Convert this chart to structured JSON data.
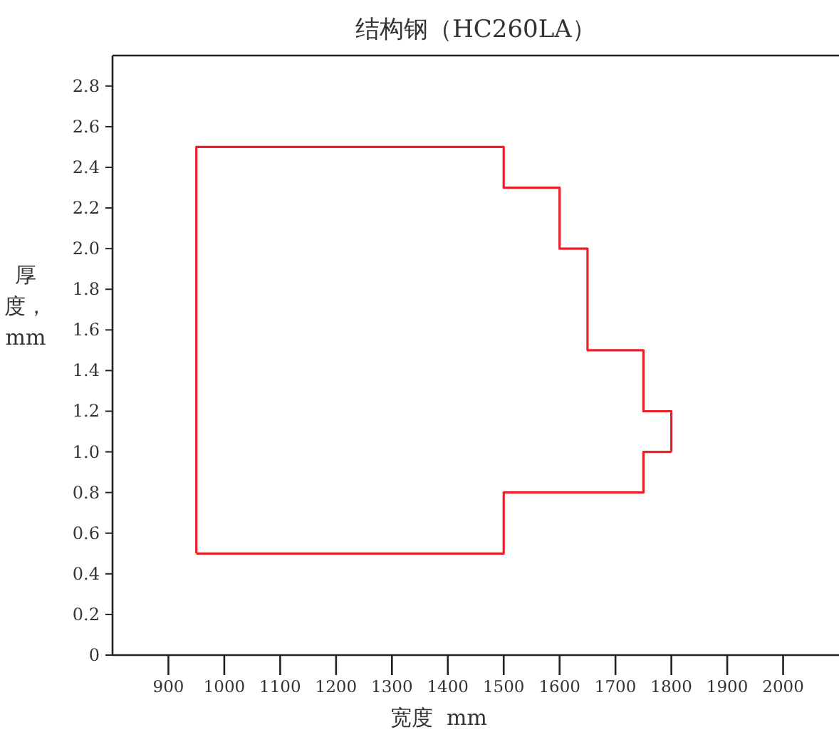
{
  "chart_data": {
    "type": "line",
    "title": "结构钢（HC260LA）",
    "xlabel": "宽度  mm",
    "ylabel": "厚度，mm",
    "series": [
      {
        "color": "#e8202a",
        "x": [
          950,
          950,
          1500,
          1500,
          1600,
          1600,
          1650,
          1650,
          1750,
          1750,
          1800,
          1800
        ],
        "values": [
          0.5,
          2.5,
          2.5,
          2.3,
          2.3,
          2.0,
          2.0,
          1.5,
          1.5,
          1.2,
          1.2,
          1.0
        ]
      },
      {
        "color": "#e8202a",
        "x": [
          950,
          1500,
          1500,
          1750,
          1750,
          1800
        ],
        "values": [
          0.5,
          0.5,
          0.8,
          0.8,
          1.0,
          1.0
        ]
      }
    ],
    "xlim": [
      800,
      2100
    ],
    "xticks": [
      900,
      1000,
      1100,
      1200,
      1300,
      1400,
      1500,
      1600,
      1700,
      1800,
      1900,
      2000
    ],
    "ylim": [
      0,
      2.95
    ],
    "yticks": [
      {
        "value": 0,
        "label": "0"
      },
      {
        "value": 0.2,
        "label": "0.2"
      },
      {
        "value": 0.4,
        "label": "0.4"
      },
      {
        "value": 0.6,
        "label": "0.6"
      },
      {
        "value": 0.8,
        "label": "0.8"
      },
      {
        "value": 1,
        "label": "1.0"
      },
      {
        "value": 1.2,
        "label": "1.2"
      },
      {
        "value": 1.4,
        "label": "1.4"
      },
      {
        "value": 1.6,
        "label": "1.6"
      },
      {
        "value": 1.8,
        "label": "1.8"
      },
      {
        "value": 2,
        "label": "2.0"
      },
      {
        "value": 2.2,
        "label": "2.2"
      },
      {
        "value": 2.4,
        "label": "2.4"
      },
      {
        "value": 2.6,
        "label": "2.6"
      },
      {
        "value": 2.8,
        "label": "2.8"
      }
    ],
    "grid": false,
    "marker": "none",
    "line_style": "solid"
  }
}
